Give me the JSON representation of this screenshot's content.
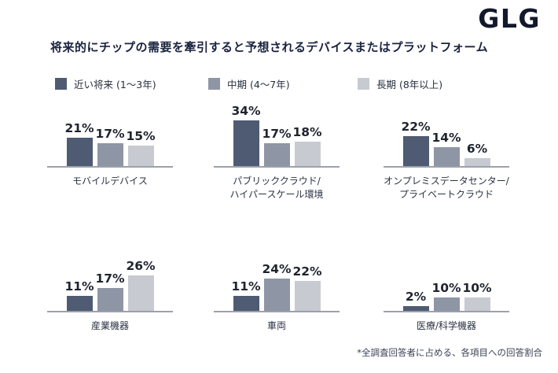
{
  "brand": {
    "logo": "GLG"
  },
  "title": "将来的にチップの需要を牽引すると予想されるデバイスまたはプラットフォーム",
  "legend": [
    {
      "label": "近い将来 (1〜3年)",
      "color": "#4e5b73"
    },
    {
      "label": "中期 (4〜7年)",
      "color": "#8e96a6"
    },
    {
      "label": "長期 (8年以上)",
      "color": "#c7cad0"
    }
  ],
  "footnote": "*全調査回答者に占める、各項目への回答割合",
  "chart_data": {
    "type": "bar",
    "title": "将来的にチップの需要を牽引すると予想されるデバイスまたはプラットフォーム",
    "unit": "%",
    "value_suffix": "%",
    "ylim": [
      0,
      40
    ],
    "grid": false,
    "legend_position": "top",
    "series_names": [
      "近い将来 (1〜3年)",
      "中期 (4〜7年)",
      "長期 (8年以上)"
    ],
    "series_colors": [
      "#4e5b73",
      "#8e96a6",
      "#c7cad0"
    ],
    "charts": [
      {
        "label_lines": [
          "モバイルデバイス"
        ],
        "values": [
          21,
          17,
          15
        ]
      },
      {
        "label_lines": [
          "パブリッククラウド/",
          "ハイパースケール環境"
        ],
        "values": [
          34,
          17,
          18
        ]
      },
      {
        "label_lines": [
          "オンプレミスデータセンター/",
          "プライベートクラウド"
        ],
        "values": [
          22,
          14,
          6
        ]
      },
      {
        "label_lines": [
          "産業機器"
        ],
        "values": [
          11,
          17,
          26
        ]
      },
      {
        "label_lines": [
          "車両"
        ],
        "values": [
          11,
          24,
          22
        ]
      },
      {
        "label_lines": [
          "医療/科学機器"
        ],
        "values": [
          2,
          10,
          10
        ]
      }
    ]
  }
}
